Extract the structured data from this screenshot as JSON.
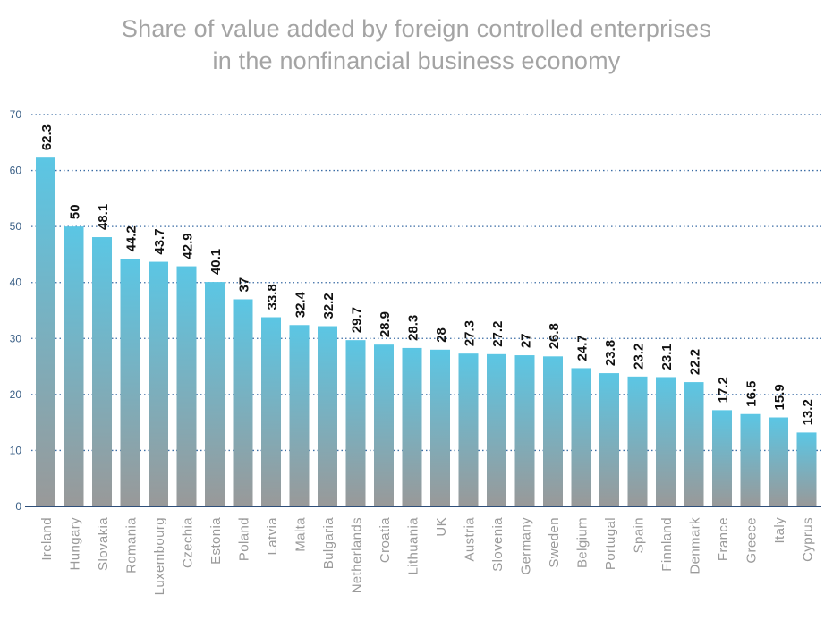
{
  "colors": {
    "bar_top": "#5bc6e4",
    "bar_bottom": "#999999",
    "grid": "#3c6da5",
    "axis": "#2f4f7a",
    "title": "#a4a4a4"
  },
  "chart_data": {
    "type": "bar",
    "title": "Share of value added by foreign controlled enterprises",
    "subtitle": "in the nonfinancial business economy",
    "xlabel": "",
    "ylabel": "",
    "ylim": [
      0,
      70
    ],
    "yticks": [
      0,
      10,
      20,
      30,
      40,
      50,
      60,
      70
    ],
    "grid": true,
    "categories": [
      "Ireland",
      "Hungary",
      "Slovakia",
      "Romania",
      "Luxembourg",
      "Czechia",
      "Estonia",
      "Poland",
      "Latvia",
      "Malta",
      "Bulgaria",
      "Netherlands",
      "Croatia",
      "Lithuania",
      "UK",
      "Austria",
      "Slovenia",
      "Germany",
      "Sweden",
      "Belgium",
      "Portugal",
      "Spain",
      "Finnland",
      "Denmark",
      "France",
      "Greece",
      "Italy",
      "Cyprus"
    ],
    "values": [
      62.3,
      50,
      48.1,
      44.2,
      43.7,
      42.9,
      40.1,
      37,
      33.8,
      32.4,
      32.2,
      29.7,
      28.9,
      28.3,
      28,
      27.3,
      27.2,
      27,
      26.8,
      24.7,
      23.8,
      23.2,
      23.1,
      22.2,
      17.2,
      16.5,
      15.9,
      13.2
    ]
  }
}
